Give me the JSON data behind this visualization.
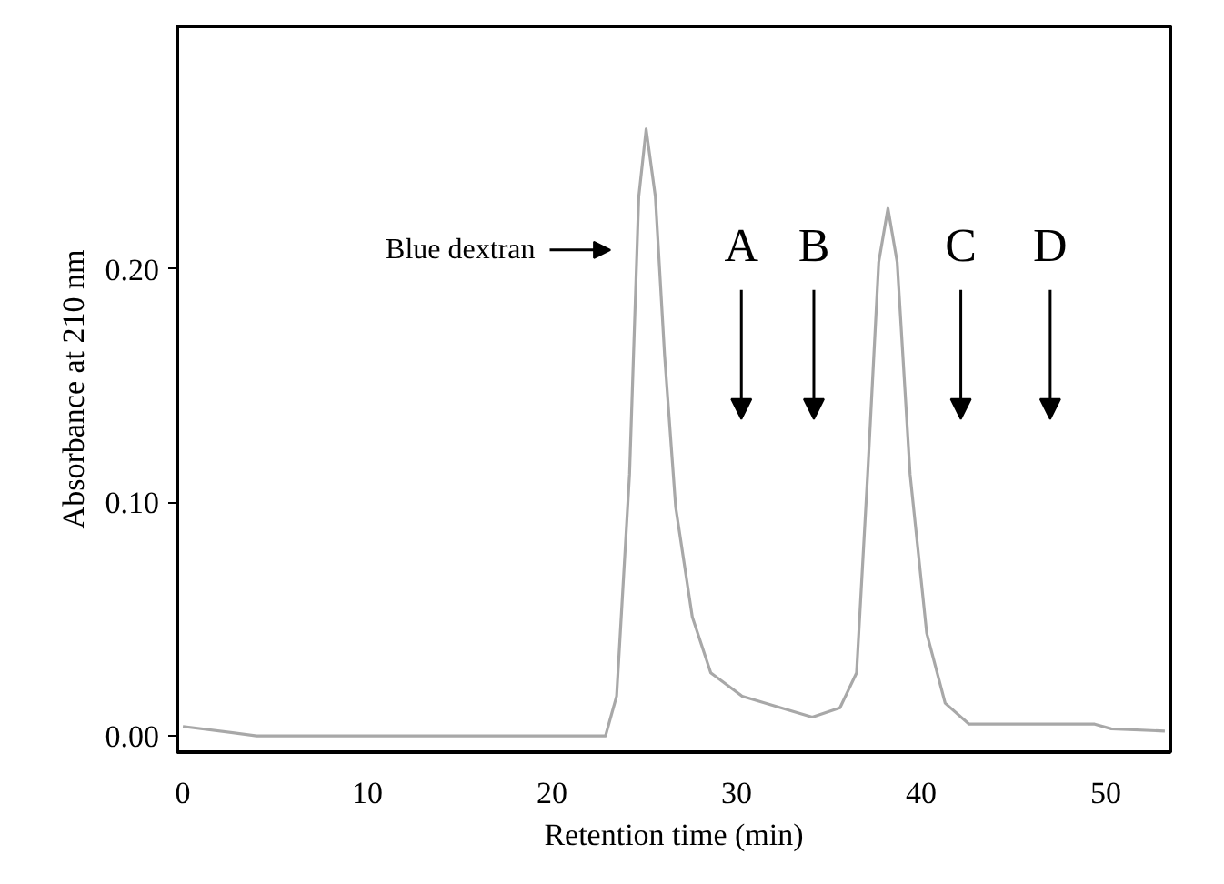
{
  "chart_data": {
    "type": "line",
    "xlabel": "Retention time (min)",
    "ylabel": "Absorbance at 210 nm",
    "xlim": [
      -0.3,
      53.5
    ],
    "ylim": [
      -0.007,
      0.304
    ],
    "xticks": [
      0,
      10,
      20,
      30,
      40,
      50
    ],
    "yticks": [
      {
        "value": 0,
        "label": "0.00"
      },
      {
        "value": 0.1,
        "label": "0.10"
      },
      {
        "value": 0.2,
        "label": "0.20"
      }
    ],
    "grid": false,
    "marker": "none",
    "line_style": "solid",
    "series": [
      {
        "color": "#a8a8a8",
        "x": [
          0,
          4.0,
          9.5,
          19.7,
          22.9,
          23.5,
          24.2,
          24.7,
          25.1,
          25.6,
          26.1,
          26.7,
          27.6,
          28.6,
          30.3,
          32.4,
          34.1,
          35.6,
          36.5,
          37.1,
          37.7,
          38.2,
          38.7,
          39.4,
          40.3,
          41.3,
          42.6,
          49.4,
          50.3,
          53.2
        ],
        "values": [
          0.004,
          0,
          0,
          0,
          0,
          0.017,
          0.112,
          0.231,
          0.26,
          0.231,
          0.163,
          0.098,
          0.051,
          0.027,
          0.017,
          0.012,
          0.008,
          0.012,
          0.027,
          0.112,
          0.203,
          0.226,
          0.203,
          0.112,
          0.044,
          0.014,
          0.005,
          0.005,
          0.003,
          0.002
        ]
      }
    ],
    "annotations": [
      "Blue dextran",
      "A",
      "B",
      "C",
      "D"
    ]
  }
}
